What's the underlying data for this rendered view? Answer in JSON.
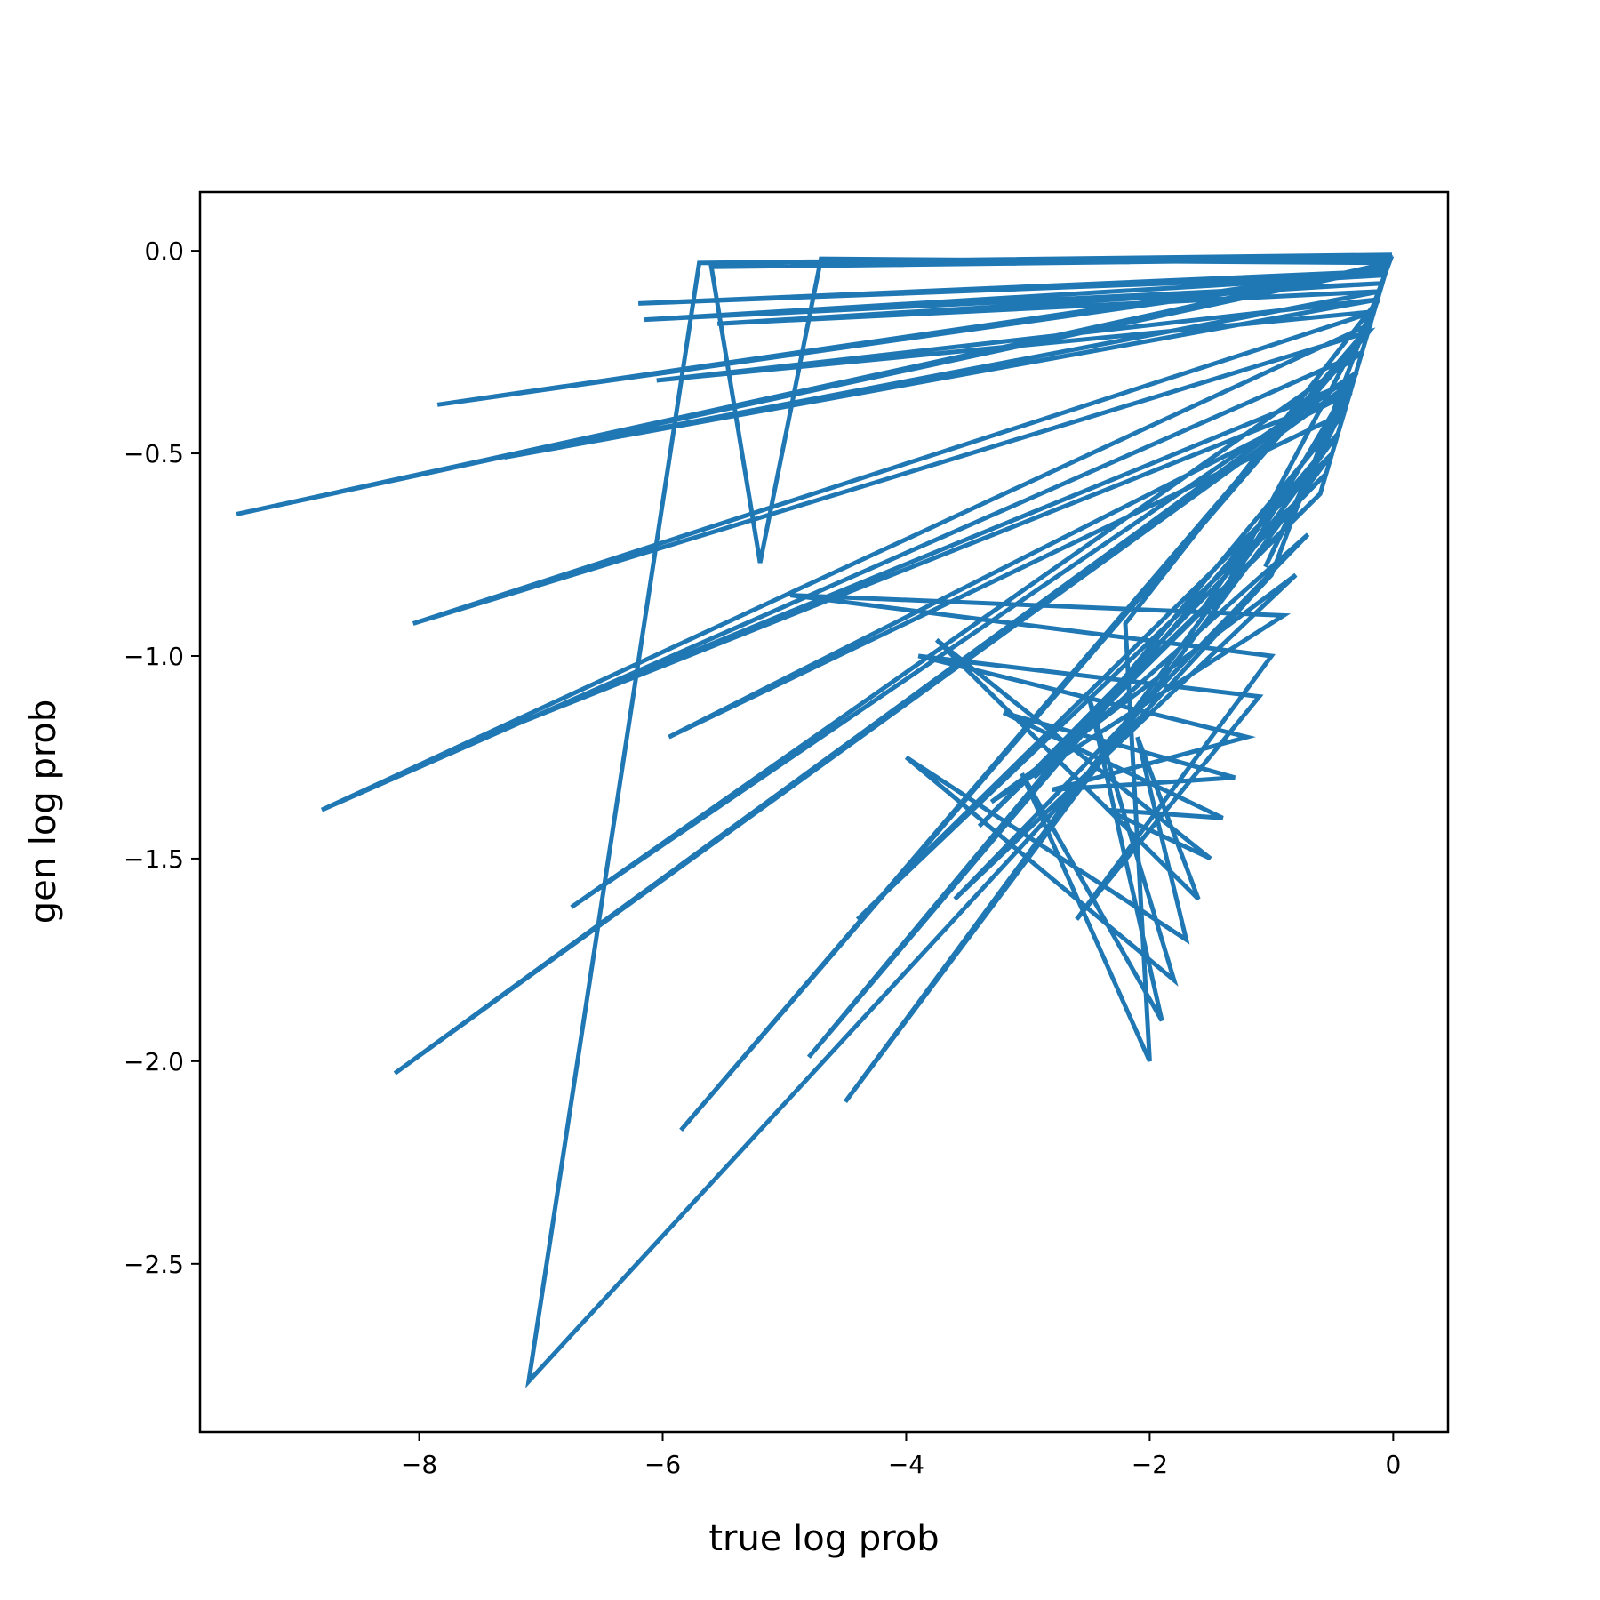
{
  "chart_data": {
    "type": "line",
    "title": "",
    "xlabel": "true log prob",
    "ylabel": "gen log prob",
    "xlim": [
      -9.8,
      0.45
    ],
    "ylim": [
      -2.915,
      0.145
    ],
    "xticks": [
      -8,
      -6,
      -4,
      -2,
      0
    ],
    "yticks": [
      0.0,
      -0.5,
      -1.0,
      -1.5,
      -2.0,
      -2.5
    ],
    "xtick_labels": [
      "−8",
      "−6",
      "−4",
      "−2",
      "0"
    ],
    "ytick_labels": [
      "0.0",
      "−0.5",
      "−1.0",
      "−1.5",
      "−2.0",
      "−2.5"
    ],
    "grid": false,
    "series_color": "#1f77b4",
    "series": [
      {
        "x": [
          -0.01,
          -5.7,
          -7.1,
          -1.0,
          -0.02,
          -5.6,
          -5.2,
          -4.7,
          -0.03,
          -9.5,
          -0.04,
          -7.85,
          -0.05,
          -6.2,
          -0.06,
          -6.15,
          -0.08,
          -5.55,
          -0.1,
          -7.3,
          -0.12,
          -6.05,
          -0.15,
          -8.05,
          -0.2,
          -5.85,
          -0.18,
          -8.8,
          -0.25,
          -6.75,
          -0.3,
          -8.2,
          -0.32,
          -7.3,
          -0.35,
          -5.95,
          -0.4,
          -4.8,
          -0.45,
          -4.5,
          -0.5,
          -4.4,
          -0.55,
          -3.4,
          -0.6,
          -2.95,
          -0.7,
          -3.6,
          -0.8,
          -3.3,
          -0.9,
          -4.95,
          -1.0,
          -2.6,
          -1.1,
          -3.9,
          -1.2,
          -2.8,
          -1.3,
          -3.2,
          -1.4,
          -2.35,
          -1.5,
          -3.75,
          -1.6,
          -2.1,
          -1.7,
          -4.0,
          -1.8,
          -2.5,
          -1.9,
          -3.05,
          -2.0,
          -2.2,
          -0.12,
          -1.55,
          -0.3,
          -1.05,
          -0.35,
          -1.6,
          -0.6,
          -0.02
        ],
        "y": [
          -0.01,
          -0.03,
          -2.79,
          -0.8,
          -0.02,
          -0.04,
          -0.77,
          -0.02,
          -0.03,
          -0.65,
          -0.04,
          -0.38,
          -0.05,
          -0.13,
          -0.06,
          -0.17,
          -0.08,
          -0.18,
          -0.1,
          -0.51,
          -0.12,
          -0.32,
          -0.15,
          -0.92,
          -0.2,
          -2.17,
          -0.18,
          -1.38,
          -0.25,
          -1.62,
          -0.3,
          -2.03,
          -0.32,
          -1.18,
          -0.35,
          -1.2,
          -0.4,
          -1.99,
          -0.45,
          -2.1,
          -0.5,
          -1.65,
          -0.55,
          -1.42,
          -0.6,
          -1.3,
          -0.7,
          -1.6,
          -0.8,
          -1.36,
          -0.9,
          -0.85,
          -1.0,
          -1.65,
          -1.1,
          -1.0,
          -1.2,
          -1.33,
          -1.3,
          -1.14,
          -1.4,
          -1.38,
          -1.5,
          -0.96,
          -1.6,
          -1.2,
          -1.7,
          -1.25,
          -1.8,
          -1.1,
          -1.9,
          -1.29,
          -2.0,
          -0.92,
          -0.12,
          -0.93,
          -0.3,
          -0.78,
          -0.35,
          -0.9,
          -0.6,
          -0.01
        ]
      }
    ]
  }
}
